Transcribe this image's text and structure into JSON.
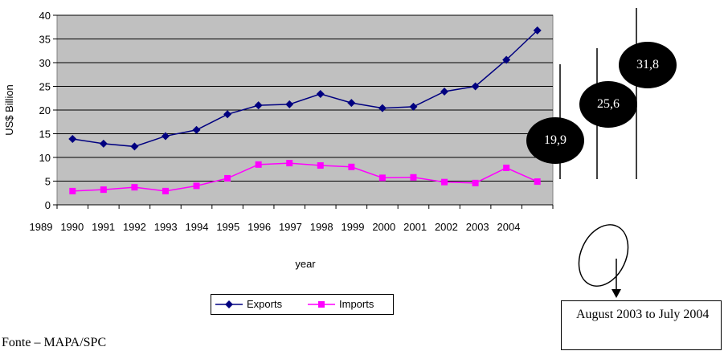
{
  "chart_data": {
    "type": "line",
    "ylabel": "US$ Billion",
    "xlabel": "year",
    "ylim": [
      0,
      40
    ],
    "yticks": [
      "0",
      "5",
      "10",
      "15",
      "20",
      "25",
      "30",
      "35",
      "40"
    ],
    "xticks": [
      "1989",
      "1990",
      "1991",
      "1992",
      "1993",
      "1994",
      "1995",
      "1996",
      "1997",
      "1998",
      "1999",
      "2000",
      "2001",
      "2002",
      "2003",
      "2004"
    ],
    "categories": [
      "1989",
      "1990",
      "1991",
      "1992",
      "1993",
      "1994",
      "1995",
      "1996",
      "1997",
      "1998",
      "1999",
      "2000",
      "2001",
      "2002",
      "2003",
      "2004"
    ],
    "grid": true,
    "legend": "bottom",
    "series": [
      {
        "name": "Exports",
        "color": "#000080",
        "marker": "diamond",
        "values": [
          13.9,
          12.9,
          12.3,
          14.5,
          15.8,
          19.1,
          21.0,
          21.2,
          23.4,
          21.5,
          20.4,
          20.7,
          23.9,
          25.0,
          30.6,
          36.8
        ]
      },
      {
        "name": "Imports",
        "color": "#ff00ff",
        "marker": "square",
        "values": [
          2.9,
          3.2,
          3.7,
          2.9,
          4.0,
          5.6,
          8.5,
          8.8,
          8.3,
          8.0,
          5.7,
          5.8,
          4.8,
          4.6,
          7.8,
          4.9
        ]
      }
    ]
  },
  "annotations": {
    "badges": [
      "19,9",
      "25,6",
      "31,8"
    ],
    "note": "August 2003 to July 2004",
    "source": "Fonte – MAPA/SPC"
  }
}
